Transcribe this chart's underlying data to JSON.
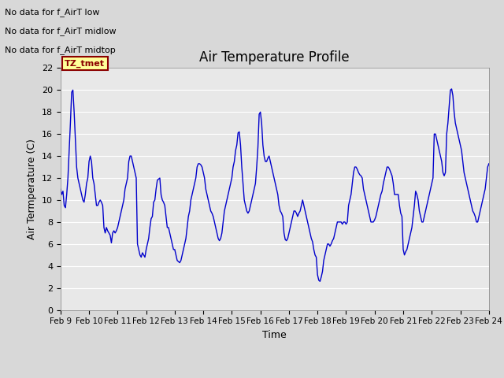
{
  "title": "Air Temperature Profile",
  "xlabel": "Time",
  "ylabel": "Air Termperature (C)",
  "ylim": [
    0,
    22
  ],
  "yticks": [
    0,
    2,
    4,
    6,
    8,
    10,
    12,
    14,
    16,
    18,
    20,
    22
  ],
  "x_labels": [
    "Feb 9",
    "Feb 10",
    "Feb 11",
    "Feb 12",
    "Feb 13",
    "Feb 14",
    "Feb 15",
    "Feb 16",
    "Feb 17",
    "Feb 18",
    "Feb 19",
    "Feb 20",
    "Feb 21",
    "Feb 22",
    "Feb 23",
    "Feb 24"
  ],
  "line_color": "#0000CC",
  "fig_bg_color": "#D8D8D8",
  "axes_bg_color": "#E8E8E8",
  "annotations": [
    "No data for f_AirT low",
    "No data for f_AirT midlow",
    "No data for f_AirT midtop"
  ],
  "tz_label": "TZ_tmet",
  "y_data": [
    11.0,
    10.5,
    10.8,
    9.5,
    9.3,
    10.5,
    12.0,
    14.5,
    17.0,
    19.8,
    20.0,
    18.0,
    15.5,
    13.0,
    12.0,
    11.5,
    11.0,
    10.5,
    10.0,
    9.8,
    10.5,
    11.5,
    12.0,
    13.5,
    14.0,
    13.5,
    12.0,
    11.5,
    10.5,
    9.5,
    9.5,
    9.8,
    10.0,
    9.8,
    9.5,
    7.5,
    7.0,
    7.5,
    7.2,
    7.0,
    6.8,
    6.1,
    7.0,
    7.2,
    7.0,
    7.2,
    7.5,
    8.0,
    8.5,
    9.0,
    9.5,
    10.0,
    11.0,
    11.5,
    12.0,
    13.5,
    14.0,
    14.0,
    13.5,
    13.0,
    12.5,
    12.0,
    6.0,
    5.5,
    5.0,
    4.8,
    5.2,
    5.0,
    4.8,
    5.5,
    6.0,
    6.5,
    7.5,
    8.3,
    8.5,
    9.8,
    10.0,
    11.0,
    11.8,
    11.9,
    12.0,
    10.5,
    10.0,
    9.8,
    9.5,
    8.5,
    7.5,
    7.5,
    7.0,
    6.5,
    6.0,
    5.5,
    5.5,
    5.0,
    4.5,
    4.4,
    4.3,
    4.5,
    5.0,
    5.5,
    6.0,
    6.5,
    7.5,
    8.5,
    9.0,
    10.0,
    10.5,
    11.0,
    11.5,
    12.0,
    13.0,
    13.3,
    13.3,
    13.2,
    13.0,
    12.5,
    12.0,
    11.0,
    10.5,
    10.0,
    9.5,
    9.0,
    8.8,
    8.5,
    8.0,
    7.5,
    7.0,
    6.5,
    6.3,
    6.5,
    7.0,
    8.0,
    9.0,
    9.5,
    10.0,
    10.5,
    11.0,
    11.5,
    12.0,
    13.0,
    13.5,
    14.5,
    15.0,
    16.1,
    16.2,
    15.0,
    13.0,
    11.5,
    10.0,
    9.5,
    9.0,
    8.8,
    9.0,
    9.5,
    10.0,
    10.5,
    11.0,
    11.5,
    13.0,
    14.8,
    17.8,
    18.0,
    17.0,
    15.0,
    14.0,
    13.5,
    13.5,
    13.8,
    14.0,
    13.5,
    13.0,
    12.5,
    12.0,
    11.5,
    11.0,
    10.5,
    9.5,
    9.0,
    8.8,
    8.5,
    7.0,
    6.4,
    6.3,
    6.5,
    7.0,
    7.5,
    8.0,
    8.5,
    9.0,
    9.0,
    8.8,
    8.5,
    8.8,
    9.0,
    9.5,
    10.0,
    9.5,
    9.0,
    8.5,
    8.0,
    7.5,
    7.0,
    6.5,
    6.2,
    5.5,
    5.0,
    4.8,
    3.2,
    2.7,
    2.6,
    3.0,
    3.5,
    4.5,
    5.0,
    5.5,
    6.0,
    6.0,
    5.8,
    6.0,
    6.3,
    6.5,
    7.0,
    7.5,
    8.0,
    8.0,
    8.0,
    8.0,
    7.8,
    8.0,
    8.0,
    7.8,
    8.0,
    9.5,
    10.0,
    10.5,
    11.5,
    12.5,
    13.0,
    13.0,
    12.8,
    12.5,
    12.3,
    12.2,
    12.0,
    11.0,
    10.5,
    10.0,
    9.5,
    9.0,
    8.5,
    8.0,
    8.0,
    8.0,
    8.2,
    8.5,
    9.0,
    9.5,
    10.0,
    10.5,
    10.8,
    11.5,
    12.0,
    12.5,
    13.0,
    13.0,
    12.8,
    12.5,
    12.2,
    11.5,
    10.5,
    10.5,
    10.5,
    10.5,
    9.5,
    8.8,
    8.5,
    5.5,
    5.0,
    5.3,
    5.5,
    6.0,
    6.5,
    7.0,
    7.5,
    8.5,
    9.5,
    10.8,
    10.5,
    10.0,
    9.0,
    8.5,
    8.0,
    8.0,
    8.5,
    9.0,
    9.5,
    10.0,
    10.5,
    11.0,
    11.5,
    12.0,
    16.0,
    16.0,
    15.5,
    15.0,
    14.5,
    14.0,
    13.5,
    12.5,
    12.2,
    12.5,
    16.0,
    17.0,
    18.5,
    20.0,
    20.1,
    19.5,
    18.0,
    17.0,
    16.5,
    16.0,
    15.5,
    15.0,
    14.5,
    13.5,
    12.5,
    12.0,
    11.5,
    11.0,
    10.5,
    10.0,
    9.5,
    9.0,
    8.8,
    8.5,
    8.0,
    8.0,
    8.5,
    9.0,
    9.5,
    10.0,
    10.5,
    11.0,
    12.0,
    13.0,
    13.3
  ]
}
